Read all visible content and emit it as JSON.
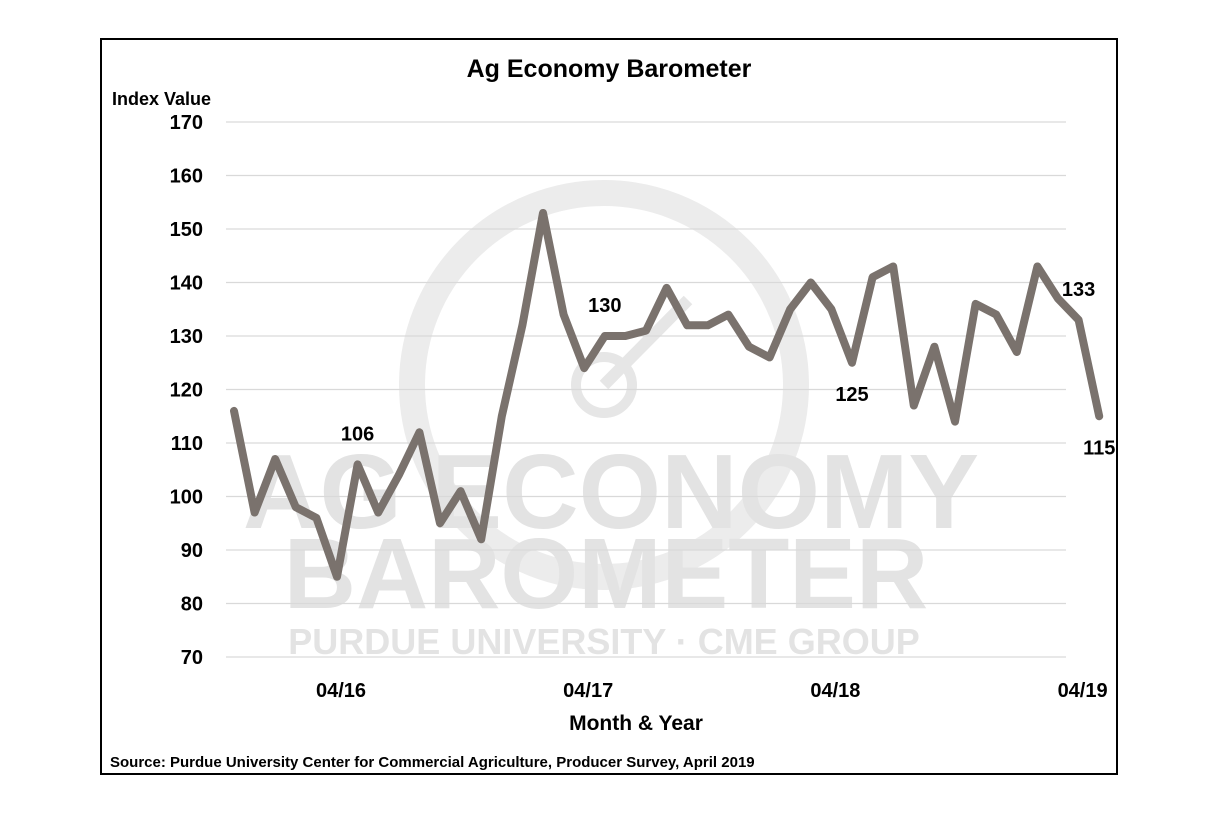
{
  "chart_data": {
    "type": "line",
    "title": "Ag Economy Barometer",
    "ylabel": "Index Value",
    "xlabel": "Month & Year",
    "ylim": [
      70,
      170
    ],
    "yticks": [
      70,
      80,
      90,
      100,
      110,
      120,
      130,
      140,
      150,
      160,
      170
    ],
    "x_tick_labels": [
      {
        "label": "04/16",
        "index": 5
      },
      {
        "label": "04/17",
        "index": 17
      },
      {
        "label": "04/18",
        "index": 29
      },
      {
        "label": "04/19",
        "index": 41
      }
    ],
    "grid": true,
    "series": [
      {
        "color": "#7a726d",
        "values": [
          116,
          97,
          107,
          98,
          96,
          85,
          106,
          97,
          104,
          112,
          95,
          101,
          92,
          115,
          132,
          153,
          134,
          124,
          130,
          130,
          131,
          139,
          132,
          132,
          134,
          128,
          126,
          135,
          140,
          135,
          125,
          141,
          143,
          117,
          128,
          114,
          136,
          134,
          127,
          143,
          137,
          133,
          115
        ]
      }
    ],
    "annotations": [
      {
        "index": 6,
        "value": 106,
        "text": "106",
        "position": "above"
      },
      {
        "index": 18,
        "value": 130,
        "text": "130",
        "position": "above"
      },
      {
        "index": 30,
        "value": 125,
        "text": "125",
        "position": "below"
      },
      {
        "index": 41,
        "value": 133,
        "text": "133",
        "position": "above"
      },
      {
        "index": 42,
        "value": 115,
        "text": "115",
        "position": "below"
      }
    ]
  },
  "watermark": {
    "line1": "AG ECONOMY",
    "line2": "BAROMETER",
    "line3": "PURDUE UNIVERSITY · CME GROUP"
  },
  "source": "Source: Purdue University Center for Commercial Agriculture, Producer Survey, April 2019"
}
